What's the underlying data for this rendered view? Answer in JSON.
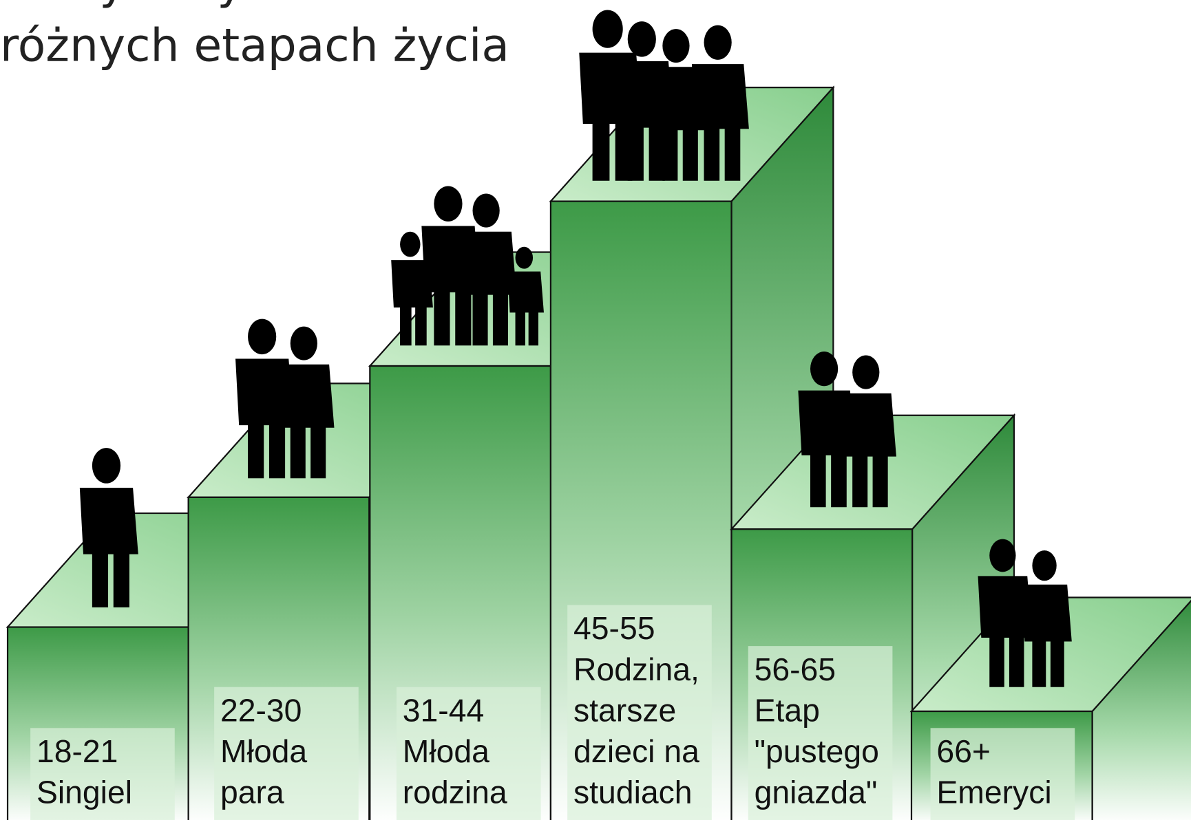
{
  "title": [
    "Nawyki wydatkowe na",
    "różnych etapach życia"
  ],
  "stages": [
    {
      "lines": [
        "18-21",
        "Singiel"
      ]
    },
    {
      "lines": [
        "22-30",
        "Młoda",
        "para"
      ]
    },
    {
      "lines": [
        "31-44",
        "Młoda",
        "rodzina"
      ]
    },
    {
      "lines": [
        "45-55",
        "Rodzina,",
        "starsze",
        "dzieci na",
        "studiach"
      ]
    },
    {
      "lines": [
        "56-65",
        "Etap",
        "\"pustego",
        "gniazda\""
      ]
    },
    {
      "lines": [
        "66+",
        "Emeryci"
      ]
    }
  ]
}
